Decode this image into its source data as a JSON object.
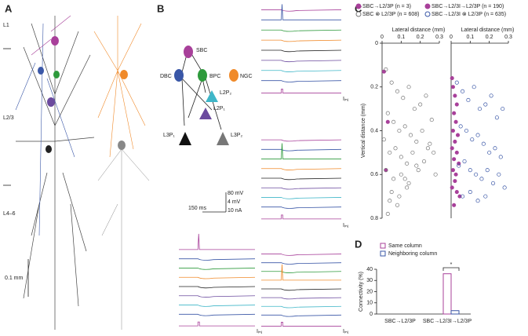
{
  "panels": {
    "a": "A",
    "b": "B",
    "c": "C",
    "d": "D"
  },
  "panel_a": {
    "layers": [
      "L1",
      "L2/3",
      "L4–6"
    ],
    "scale": "0.1 mm"
  },
  "panel_b": {
    "cells": {
      "sbc": "SBC",
      "dbc": "DBC",
      "bpc": "BPC",
      "ngc": "NGC",
      "l2p2": "L2P₂",
      "l2p1": "L2P₁",
      "l3p1": "L3P₁",
      "l3p2": "L3P₂"
    },
    "scale": [
      "80 mV",
      "4 mV",
      "10 nA"
    ],
    "time": "150 ms",
    "current": [
      "Iᵢₙⱼ",
      "Iᵢₙⱼ",
      "Iᵢₙⱼ",
      "Iᵢₙⱼ"
    ]
  },
  "chart_data": [
    {
      "type": "scatter",
      "xlabel": "Lateral distance (mm)",
      "ylabel": "Vertical distance (mm)",
      "xlim": [
        0,
        0.3
      ],
      "xticks": [
        0,
        0.1,
        0.2,
        0.3
      ],
      "ylim": [
        0.8,
        0
      ],
      "yticks": [
        0,
        0.2,
        0.4,
        0.6,
        0.8
      ],
      "series": [
        {
          "name": "SBC→L2/3P (n = 3)",
          "color": "#a8409a",
          "filled": true,
          "x": [
            0.01,
            0.03,
            0.02
          ],
          "values": [
            0.13,
            0.36,
            0.58
          ]
        },
        {
          "name": "SBC ⊗ L2/3P (n = 608)",
          "color": "#777777",
          "filled": false,
          "x": [
            0.02,
            0.05,
            0.08,
            0.11,
            0.14,
            0.17,
            0.2,
            0.23,
            0.26,
            0.03,
            0.06,
            0.09,
            0.12,
            0.15,
            0.18,
            0.21,
            0.24,
            0.27,
            0.01,
            0.04,
            0.07,
            0.1,
            0.13,
            0.16,
            0.19,
            0.22,
            0.25,
            0.28,
            0.02,
            0.06,
            0.1,
            0.14,
            0.18,
            0.05,
            0.09,
            0.13,
            0.04,
            0.08,
            0.12,
            0.03
          ],
          "values": [
            0.12,
            0.18,
            0.22,
            0.25,
            0.2,
            0.3,
            0.28,
            0.24,
            0.35,
            0.32,
            0.36,
            0.4,
            0.38,
            0.42,
            0.45,
            0.4,
            0.48,
            0.5,
            0.44,
            0.5,
            0.48,
            0.52,
            0.55,
            0.5,
            0.58,
            0.54,
            0.46,
            0.6,
            0.58,
            0.62,
            0.6,
            0.64,
            0.56,
            0.68,
            0.7,
            0.66,
            0.72,
            0.74,
            0.62,
            0.78
          ]
        }
      ]
    },
    {
      "type": "scatter",
      "xlabel": "Lateral distance (mm)",
      "xlim": [
        0,
        0.3
      ],
      "xticks": [
        0,
        0.1,
        0.2,
        0.3
      ],
      "ylim": [
        0.8,
        0
      ],
      "series": [
        {
          "name": "SBC→L2/3I→L2/3P (n = 190)",
          "color": "#a8409a",
          "filled": true,
          "x": [
            0.005,
            0.01,
            0.02,
            0.03,
            0.015,
            0.025,
            0.01,
            0.035,
            0.02,
            0.005,
            0.03,
            0.015,
            0.04,
            0.01,
            0.025,
            0.02,
            0.005,
            0.03,
            0.045,
            0.015
          ],
          "values": [
            0.16,
            0.2,
            0.24,
            0.28,
            0.32,
            0.36,
            0.4,
            0.42,
            0.45,
            0.48,
            0.5,
            0.53,
            0.55,
            0.58,
            0.6,
            0.63,
            0.66,
            0.68,
            0.7,
            0.74
          ]
        },
        {
          "name": "SBC→L2/3I ⊗ L2/3P (n = 635)",
          "color": "#3a57a7",
          "filled": false,
          "x": [
            0.03,
            0.06,
            0.09,
            0.12,
            0.15,
            0.18,
            0.21,
            0.24,
            0.27,
            0.05,
            0.08,
            0.11,
            0.14,
            0.17,
            0.2,
            0.23,
            0.26,
            0.04,
            0.07,
            0.1,
            0.13,
            0.16,
            0.19,
            0.22,
            0.25,
            0.28,
            0.06,
            0.1,
            0.14,
            0.18
          ],
          "values": [
            0.18,
            0.22,
            0.26,
            0.2,
            0.3,
            0.28,
            0.24,
            0.34,
            0.3,
            0.38,
            0.4,
            0.44,
            0.42,
            0.46,
            0.5,
            0.48,
            0.52,
            0.56,
            0.54,
            0.58,
            0.6,
            0.62,
            0.58,
            0.64,
            0.6,
            0.66,
            0.7,
            0.68,
            0.72,
            0.7
          ]
        }
      ]
    },
    {
      "type": "bar",
      "ylabel": "Connectivity (%)",
      "categories": [
        "SBC→L2/3P",
        "SBC→L2/3I→L2/3P"
      ],
      "series": [
        {
          "name": "Same column",
          "color": "#a8409a",
          "values": [
            0,
            36
          ]
        },
        {
          "name": "Neighboring column",
          "color": "#3a57a7",
          "values": [
            0,
            3
          ]
        }
      ],
      "ylim": [
        0,
        40
      ],
      "yticks": [
        0,
        10,
        20,
        30,
        40
      ],
      "legend": "upper left",
      "annotation": "*"
    }
  ]
}
